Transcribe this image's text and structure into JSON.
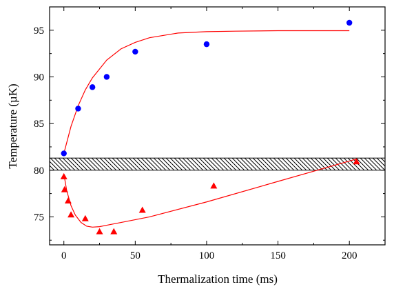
{
  "chart_data": {
    "type": "scatter",
    "xlabel": "Thermalization time (ms)",
    "ylabel": "Temperature (µK)",
    "xlim": [
      -10,
      225
    ],
    "ylim": [
      72,
      97.5
    ],
    "xticks": [
      0,
      50,
      100,
      150,
      200
    ],
    "xtick_labels": [
      "0",
      "50",
      "100",
      "150",
      "200"
    ],
    "yticks": [
      75,
      80,
      85,
      90,
      95
    ],
    "ytick_labels": [
      "75",
      "80",
      "85",
      "90",
      "95"
    ],
    "grid": false,
    "series": [
      {
        "marker": "circle",
        "color": "#0000ff",
        "x": [
          0,
          10,
          20,
          30,
          50,
          100,
          200
        ],
        "y": [
          81.8,
          86.6,
          88.9,
          90.0,
          92.7,
          93.5,
          95.8
        ]
      },
      {
        "marker": "triangle",
        "color": "#ff0000",
        "x": [
          0,
          0.5,
          3,
          5,
          15,
          25,
          35,
          55,
          105,
          205
        ],
        "y": [
          79.3,
          77.9,
          76.7,
          75.2,
          74.8,
          73.4,
          73.4,
          75.7,
          78.3,
          80.9
        ]
      }
    ],
    "fit_curves": [
      {
        "color": "#ff0000",
        "x": [
          0,
          5,
          10,
          15,
          20,
          30,
          40,
          50,
          60,
          80,
          100,
          120,
          150,
          200
        ],
        "y": [
          81.8,
          84.7,
          86.9,
          88.6,
          89.9,
          91.8,
          93.0,
          93.7,
          94.2,
          94.7,
          94.85,
          94.9,
          94.95,
          94.95
        ]
      },
      {
        "color": "#ff0000",
        "x": [
          0,
          2,
          5,
          8,
          12,
          16,
          20,
          25,
          30,
          40,
          60,
          100,
          150,
          205
        ],
        "y": [
          79.6,
          77.8,
          76.2,
          75.2,
          74.4,
          74.0,
          73.9,
          73.95,
          74.1,
          74.4,
          75.0,
          76.6,
          78.8,
          81.2
        ]
      }
    ],
    "band": {
      "y_low": 80.0,
      "y_high": 81.3,
      "pattern": "diagonal-hatch"
    }
  }
}
